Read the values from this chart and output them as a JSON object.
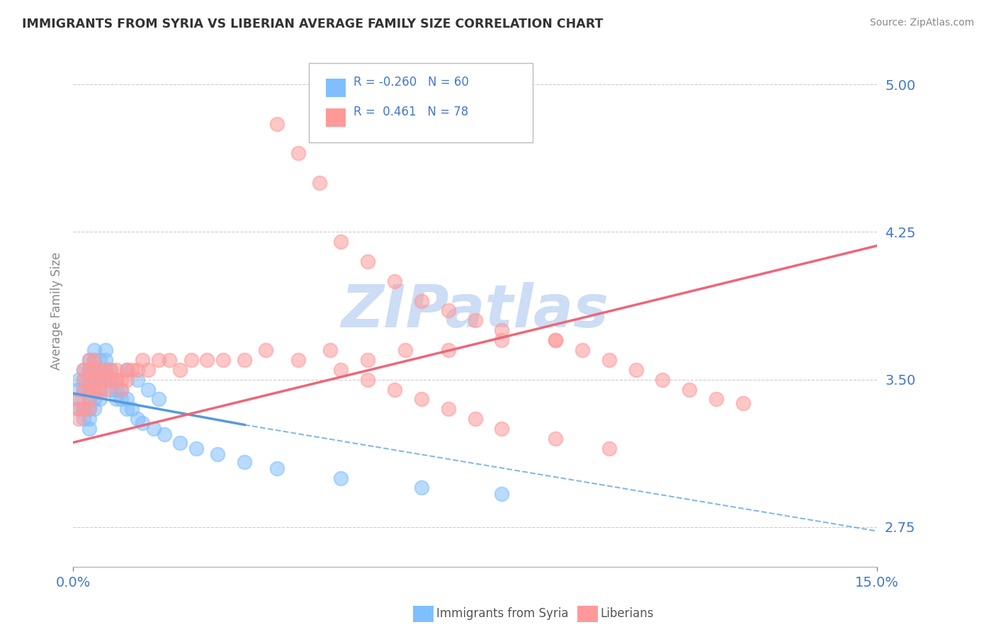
{
  "title": "IMMIGRANTS FROM SYRIA VS LIBERIAN AVERAGE FAMILY SIZE CORRELATION CHART",
  "source_text": "Source: ZipAtlas.com",
  "ylabel": "Average Family Size",
  "xlim": [
    0.0,
    0.15
  ],
  "ylim": [
    2.55,
    5.15
  ],
  "yticks": [
    2.75,
    3.5,
    4.25,
    5.0
  ],
  "xtick_labels": [
    "0.0%",
    "15.0%"
  ],
  "color_syria": "#80bfff",
  "color_liberia": "#ff9999",
  "trend_color_syria": "#5599dd",
  "trend_color_liberia": "#ee6677",
  "watermark": "ZIPatlas",
  "watermark_color": "#ccddf5",
  "grid_color": "#cccccc",
  "tick_label_color": "#4477cc",
  "syria_x": [
    0.001,
    0.001,
    0.001,
    0.001,
    0.002,
    0.002,
    0.002,
    0.002,
    0.002,
    0.003,
    0.003,
    0.003,
    0.003,
    0.003,
    0.003,
    0.003,
    0.003,
    0.004,
    0.004,
    0.004,
    0.004,
    0.004,
    0.004,
    0.004,
    0.005,
    0.005,
    0.005,
    0.005,
    0.005,
    0.006,
    0.006,
    0.006,
    0.006,
    0.007,
    0.007,
    0.007,
    0.008,
    0.008,
    0.008,
    0.009,
    0.009,
    0.01,
    0.01,
    0.011,
    0.012,
    0.013,
    0.015,
    0.017,
    0.02,
    0.023,
    0.027,
    0.032,
    0.038,
    0.05,
    0.065,
    0.08,
    0.01,
    0.012,
    0.014,
    0.016
  ],
  "syria_y": [
    3.5,
    3.45,
    3.4,
    3.35,
    3.55,
    3.5,
    3.45,
    3.35,
    3.3,
    3.6,
    3.55,
    3.5,
    3.45,
    3.4,
    3.35,
    3.3,
    3.25,
    3.65,
    3.6,
    3.55,
    3.5,
    3.45,
    3.4,
    3.35,
    3.6,
    3.55,
    3.5,
    3.45,
    3.4,
    3.65,
    3.6,
    3.55,
    3.5,
    3.55,
    3.5,
    3.45,
    3.5,
    3.45,
    3.4,
    3.45,
    3.4,
    3.4,
    3.35,
    3.35,
    3.3,
    3.28,
    3.25,
    3.22,
    3.18,
    3.15,
    3.12,
    3.08,
    3.05,
    3.0,
    2.95,
    2.92,
    3.55,
    3.5,
    3.45,
    3.4
  ],
  "liberia_x": [
    0.001,
    0.001,
    0.001,
    0.002,
    0.002,
    0.002,
    0.002,
    0.003,
    0.003,
    0.003,
    0.003,
    0.003,
    0.003,
    0.004,
    0.004,
    0.004,
    0.004,
    0.005,
    0.005,
    0.005,
    0.006,
    0.006,
    0.006,
    0.007,
    0.007,
    0.008,
    0.008,
    0.009,
    0.009,
    0.01,
    0.01,
    0.011,
    0.012,
    0.013,
    0.014,
    0.016,
    0.018,
    0.02,
    0.022,
    0.025,
    0.028,
    0.032,
    0.036,
    0.042,
    0.048,
    0.055,
    0.062,
    0.07,
    0.08,
    0.09,
    0.038,
    0.042,
    0.046,
    0.05,
    0.055,
    0.06,
    0.065,
    0.07,
    0.075,
    0.08,
    0.09,
    0.095,
    0.1,
    0.105,
    0.11,
    0.115,
    0.12,
    0.125,
    0.05,
    0.055,
    0.06,
    0.065,
    0.07,
    0.075,
    0.08,
    0.09,
    0.1
  ],
  "liberia_y": [
    3.4,
    3.35,
    3.3,
    3.55,
    3.5,
    3.45,
    3.35,
    3.6,
    3.55,
    3.5,
    3.45,
    3.4,
    3.35,
    3.6,
    3.55,
    3.5,
    3.45,
    3.55,
    3.5,
    3.45,
    3.55,
    3.5,
    3.45,
    3.55,
    3.5,
    3.55,
    3.5,
    3.5,
    3.45,
    3.55,
    3.5,
    3.55,
    3.55,
    3.6,
    3.55,
    3.6,
    3.6,
    3.55,
    3.6,
    3.6,
    3.6,
    3.6,
    3.65,
    3.6,
    3.65,
    3.6,
    3.65,
    3.65,
    3.7,
    3.7,
    4.8,
    4.65,
    4.5,
    4.2,
    4.1,
    4.0,
    3.9,
    3.85,
    3.8,
    3.75,
    3.7,
    3.65,
    3.6,
    3.55,
    3.5,
    3.45,
    3.4,
    3.38,
    3.55,
    3.5,
    3.45,
    3.4,
    3.35,
    3.3,
    3.25,
    3.2,
    3.15
  ],
  "syria_trend_x0": 0.0,
  "syria_trend_x1": 0.032,
  "syria_trend_x2": 0.15,
  "syria_trend_y0": 3.43,
  "syria_trend_y1": 3.27,
  "syria_trend_y2": 2.73,
  "liberia_trend_x0": 0.0,
  "liberia_trend_x1": 0.15,
  "liberia_trend_y0": 3.18,
  "liberia_trend_y1": 4.18
}
